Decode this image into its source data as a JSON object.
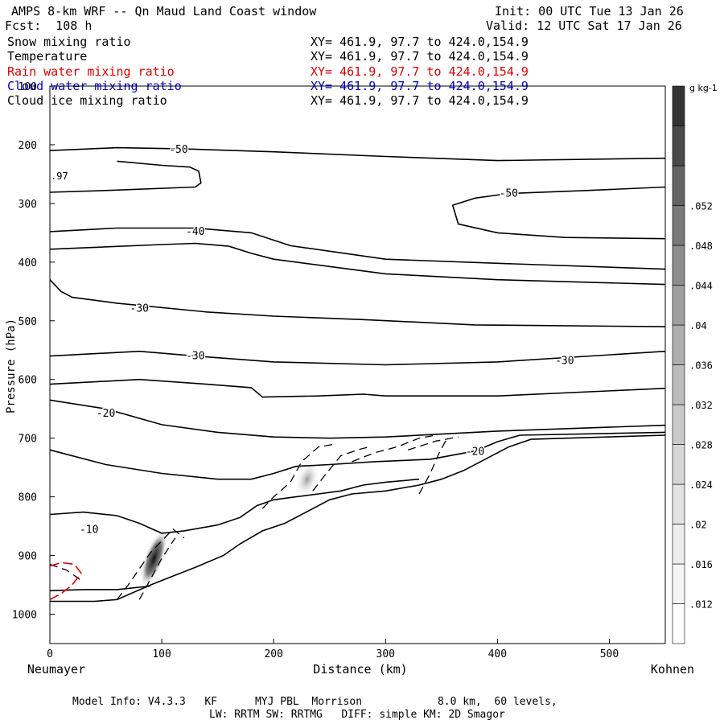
{
  "header": {
    "title": "AMPS 8-km WRF -- Qn Maud Land Coast window",
    "fcst": "Fcst:  108 h",
    "init": "Init: 00 UTC Tue 13 Jan 26",
    "valid": "Valid: 12 UTC Sat 17 Jan 26"
  },
  "legend": [
    {
      "label": "Snow mixing ratio",
      "xy": "XY= 461.9, 97.7 to 424.0,154.9",
      "color": "#000000"
    },
    {
      "label": "Temperature",
      "xy": "XY= 461.9, 97.7 to 424.0,154.9",
      "color": "#000000"
    },
    {
      "label": "Rain water mixing ratio",
      "xy": "XY= 461.9, 97.7 to 424.0,154.9",
      "color": "#e00000"
    },
    {
      "label": "Cloud water mixing ratio",
      "xy": "XY= 461.9, 97.7 to 424.0,154.9",
      "color": "#0000cc"
    },
    {
      "label": "Cloud ice mixing ratio",
      "xy": "XY= 461.9, 97.7 to 424.0,154.9",
      "color": "#000000"
    }
  ],
  "footer": {
    "line1": "Model Info: V4.3.3   KF      MYJ PBL  Morrison            8.0 km,  60 levels,",
    "line2": "LW: RRTM SW: RRTMG   DIFF: simple KM: 2D Smagor"
  },
  "chart_data": {
    "type": "contour",
    "xlabel": "Distance (km)",
    "ylabel": "Pressure (hPa)",
    "xlim": [
      0,
      550
    ],
    "ylim": [
      1050,
      100
    ],
    "xticks": [
      0,
      100,
      200,
      300,
      400,
      500
    ],
    "yticks": [
      100,
      200,
      300,
      400,
      500,
      600,
      700,
      800,
      900,
      1000
    ],
    "endpoints": {
      "left": "Neumayer",
      "right": "Kohnen"
    },
    "colorbar": {
      "unit": "g kg-1",
      "ticks": [
        ".012",
        ".016",
        ".02",
        ".024",
        ".028",
        ".032",
        ".036",
        ".04",
        ".044",
        ".048",
        ".052"
      ],
      "colors": [
        "#ffffff",
        "#f6f6f6",
        "#ededed",
        "#e2e2e2",
        "#d6d6d6",
        "#c9c9c9",
        "#bcbcbc",
        "#aeaeae",
        "#9f9f9f",
        "#8d8d8d",
        "#7a7a7a",
        "#646464",
        "#4a4a4a",
        "#333333"
      ]
    },
    "temperature_contours": [
      {
        "label": "-50",
        "pts": [
          [
            0,
            210
          ],
          [
            60,
            205
          ],
          [
            120,
            207
          ],
          [
            200,
            212
          ],
          [
            300,
            220
          ],
          [
            400,
            227
          ],
          [
            550,
            223
          ]
        ]
      },
      {
        "label": "-50",
        "pts": [
          [
            0,
            281
          ],
          [
            50,
            278
          ],
          [
            130,
            272
          ],
          [
            135,
            265
          ],
          [
            133,
            245
          ],
          [
            125,
            238
          ],
          [
            100,
            235
          ],
          [
            60,
            228
          ]
        ]
      },
      {
        "label": "-50",
        "pts": [
          [
            550,
            272
          ],
          [
            480,
            278
          ],
          [
            410,
            283
          ],
          [
            380,
            291
          ],
          [
            360,
            303
          ],
          [
            365,
            335
          ],
          [
            400,
            350
          ],
          [
            460,
            358
          ],
          [
            550,
            360
          ]
        ]
      },
      {
        "label": "-40",
        "pts": [
          [
            0,
            348
          ],
          [
            60,
            342
          ],
          [
            130,
            342
          ],
          [
            180,
            350
          ],
          [
            215,
            372
          ],
          [
            300,
            395
          ],
          [
            400,
            402
          ],
          [
            550,
            412
          ]
        ]
      },
      {
        "label": "-40",
        "pts": [
          [
            0,
            378
          ],
          [
            100,
            370
          ],
          [
            130,
            368
          ],
          [
            160,
            373
          ],
          [
            180,
            385
          ],
          [
            200,
            395
          ],
          [
            300,
            420
          ],
          [
            400,
            430
          ],
          [
            550,
            438
          ]
        ]
      },
      {
        "label": "-30",
        "pts": [
          [
            0,
            430
          ],
          [
            10,
            450
          ],
          [
            20,
            460
          ],
          [
            60,
            470
          ],
          [
            140,
            485
          ],
          [
            200,
            492
          ],
          [
            280,
            498
          ],
          [
            380,
            507
          ],
          [
            550,
            510
          ]
        ]
      },
      {
        "label": "-30",
        "pts": [
          [
            0,
            560
          ],
          [
            80,
            552
          ],
          [
            130,
            560
          ],
          [
            200,
            570
          ],
          [
            300,
            575
          ],
          [
            400,
            570
          ],
          [
            550,
            552
          ]
        ]
      },
      {
        "label": "-30",
        "pts": [
          [
            0,
            608
          ],
          [
            80,
            600
          ],
          [
            140,
            608
          ],
          [
            180,
            614
          ],
          [
            190,
            630
          ],
          [
            240,
            628
          ],
          [
            280,
            625
          ],
          [
            300,
            628
          ],
          [
            400,
            628
          ],
          [
            550,
            615
          ]
        ]
      },
      {
        "label": "-20",
        "pts": [
          [
            0,
            635
          ],
          [
            50,
            650
          ],
          [
            100,
            677
          ],
          [
            150,
            690
          ],
          [
            200,
            698
          ],
          [
            250,
            700
          ],
          [
            300,
            698
          ],
          [
            400,
            688
          ],
          [
            550,
            678
          ]
        ]
      },
      {
        "label": "-20",
        "pts": [
          [
            0,
            720
          ],
          [
            50,
            745
          ],
          [
            100,
            760
          ],
          [
            150,
            770
          ],
          [
            180,
            770
          ],
          [
            200,
            760
          ],
          [
            220,
            748
          ],
          [
            250,
            745
          ],
          [
            290,
            740
          ],
          [
            340,
            736
          ],
          [
            380,
            722
          ],
          [
            400,
            706
          ],
          [
            420,
            695
          ],
          [
            550,
            690
          ]
        ]
      }
    ]
  }
}
